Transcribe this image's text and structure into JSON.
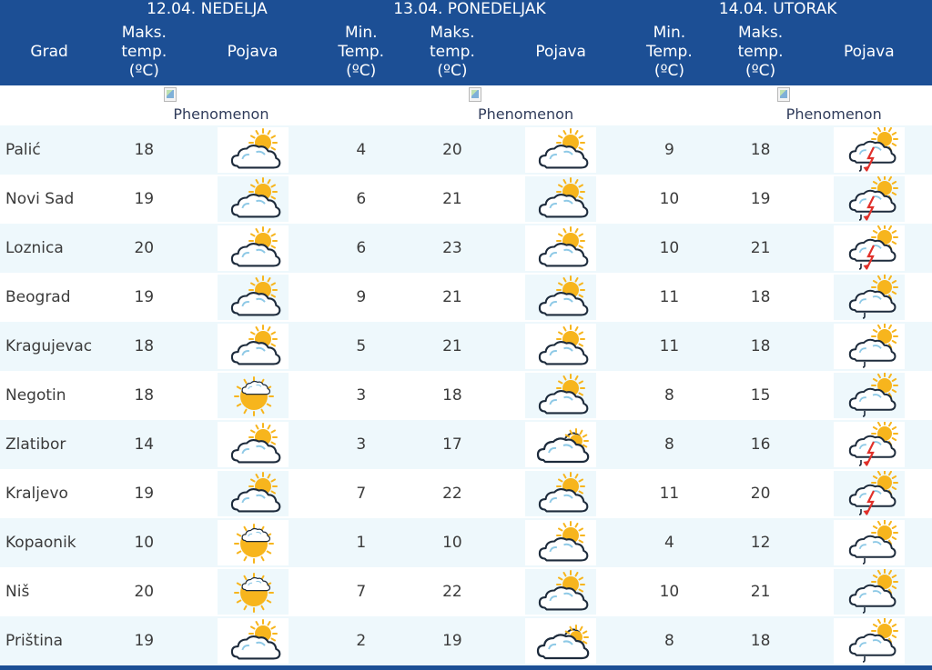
{
  "header": {
    "grad_label": "Grad",
    "days": [
      "12.04. NEDELJA",
      "13.04. PONEDELJAK",
      "14.04. UTORAK"
    ],
    "max_label": [
      "Maks.",
      "temp.",
      "(ºC)"
    ],
    "min_label": [
      "Min.",
      "Temp.",
      "(ºC)"
    ],
    "pojava_label": "Pojava"
  },
  "phenomenon_alt": "Phenomenon",
  "rows": [
    {
      "city": "Palić",
      "d1_max": "18",
      "d1_icon": "partly-cloudy-icon",
      "d2_min": "4",
      "d2_max": "20",
      "d2_icon": "partly-cloudy-icon",
      "d3_min": "9",
      "d3_max": "18",
      "d3_icon": "thunderstorm-icon"
    },
    {
      "city": "Novi Sad",
      "d1_max": "19",
      "d1_icon": "partly-cloudy-icon",
      "d2_min": "6",
      "d2_max": "21",
      "d2_icon": "partly-cloudy-icon",
      "d3_min": "10",
      "d3_max": "19",
      "d3_icon": "thunderstorm-icon"
    },
    {
      "city": "Loznica",
      "d1_max": "20",
      "d1_icon": "partly-cloudy-icon",
      "d2_min": "6",
      "d2_max": "23",
      "d2_icon": "partly-cloudy-icon",
      "d3_min": "10",
      "d3_max": "21",
      "d3_icon": "thunderstorm-icon"
    },
    {
      "city": "Beograd",
      "d1_max": "19",
      "d1_icon": "partly-cloudy-icon",
      "d2_min": "9",
      "d2_max": "21",
      "d2_icon": "partly-cloudy-icon",
      "d3_min": "11",
      "d3_max": "18",
      "d3_icon": "light-rain-icon"
    },
    {
      "city": "Kragujevac",
      "d1_max": "18",
      "d1_icon": "partly-cloudy-icon",
      "d2_min": "5",
      "d2_max": "21",
      "d2_icon": "partly-cloudy-icon",
      "d3_min": "11",
      "d3_max": "18",
      "d3_icon": "light-rain-icon"
    },
    {
      "city": "Negotin",
      "d1_max": "18",
      "d1_icon": "mostly-sunny-icon",
      "d2_min": "3",
      "d2_max": "18",
      "d2_icon": "partly-cloudy-icon",
      "d3_min": "8",
      "d3_max": "15",
      "d3_icon": "light-rain-icon"
    },
    {
      "city": "Zlatibor",
      "d1_max": "14",
      "d1_icon": "partly-cloudy-icon",
      "d2_min": "3",
      "d2_max": "17",
      "d2_icon": "cloudy-icon",
      "d3_min": "8",
      "d3_max": "16",
      "d3_icon": "thunderstorm-icon"
    },
    {
      "city": "Kraljevo",
      "d1_max": "19",
      "d1_icon": "partly-cloudy-icon",
      "d2_min": "7",
      "d2_max": "22",
      "d2_icon": "partly-cloudy-icon",
      "d3_min": "11",
      "d3_max": "20",
      "d3_icon": "thunderstorm-icon"
    },
    {
      "city": "Kopaonik",
      "d1_max": "10",
      "d1_icon": "mostly-sunny-icon",
      "d2_min": "1",
      "d2_max": "10",
      "d2_icon": "partly-cloudy-icon",
      "d3_min": "4",
      "d3_max": "12",
      "d3_icon": "light-rain-icon"
    },
    {
      "city": "Niš",
      "d1_max": "20",
      "d1_icon": "mostly-sunny-icon",
      "d2_min": "7",
      "d2_max": "22",
      "d2_icon": "partly-cloudy-icon",
      "d3_min": "10",
      "d3_max": "21",
      "d3_icon": "light-rain-icon"
    },
    {
      "city": "Priština",
      "d1_max": "19",
      "d1_icon": "partly-cloudy-icon",
      "d2_min": "2",
      "d2_max": "19",
      "d2_icon": "cloudy-icon",
      "d3_min": "8",
      "d3_max": "18",
      "d3_icon": "light-rain-icon"
    }
  ],
  "colors": {
    "header_bg": "#1c4f95",
    "row_alt_bg": "#eef8fc",
    "sun": "#f7b51d",
    "cloud_stroke": "#1d2b3c",
    "lightning": "#e0302a"
  }
}
